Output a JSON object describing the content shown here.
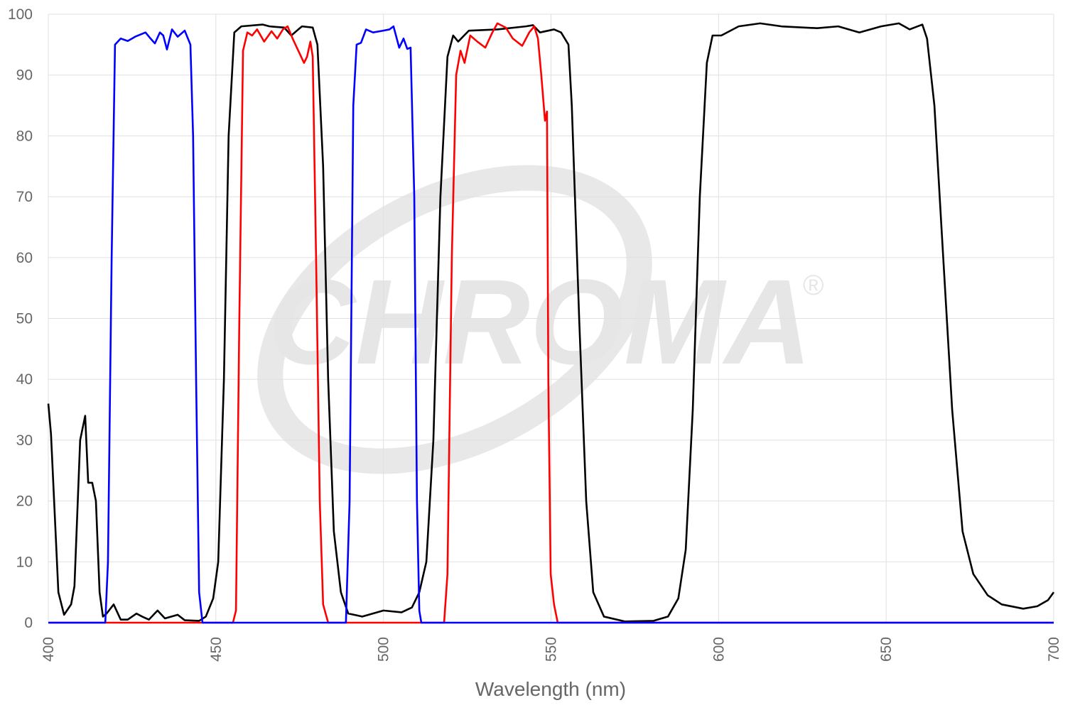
{
  "chart_data": {
    "type": "line",
    "xlabel": "Wavelength (nm)",
    "watermark": "CHROMA",
    "watermark_mark": "®",
    "xlim": [
      400,
      700
    ],
    "xticks": [
      400,
      450,
      500,
      550,
      600,
      650,
      700
    ],
    "ylim": [
      0,
      100
    ],
    "yticks": [
      0,
      10,
      20,
      30,
      40,
      50,
      60,
      70,
      80,
      90,
      100
    ],
    "grid": true,
    "series": [
      {
        "color": "#000000",
        "x": [
          400,
          400.8,
          403,
          404.7,
          406.8,
          407.8,
          409.5,
          411,
          411.9,
          413.1,
          414.2,
          415.3,
          416.3,
          417.4,
          419.5,
          421.6,
          423.7,
          426.3,
          428,
          430,
          432.6,
          434.8,
          438.6,
          440.7,
          445,
          447,
          449.2,
          450.7,
          452.4,
          453.8,
          455.5,
          457.6,
          464,
          466,
          470.4,
          472.5,
          474.6,
          475.7,
          478.9,
          480.3,
          482,
          483.5,
          485.2,
          487.3,
          489.5,
          493.7,
          500,
          505.4,
          508.5,
          510.7,
          512.8,
          514.9,
          517,
          519.1,
          520.8,
          522.3,
          525.5,
          534,
          542.5,
          544.6,
          546.7,
          550.9,
          553,
          555.2,
          556.2,
          558.4,
          560.5,
          562.6,
          565.8,
          572,
          580.6,
          584.9,
          588,
          590.2,
          592.3,
          594.4,
          596.5,
          598.2,
          600.8,
          606,
          612.4,
          618.8,
          629.4,
          635.7,
          642,
          645.3,
          648.5,
          653.8,
          657,
          660.8,
          662.2,
          664.4,
          666.5,
          669.7,
          672.8,
          676,
          680.3,
          684.5,
          690.9,
          695.1,
          698.3,
          700
        ],
        "values": [
          36,
          31,
          5,
          1.3,
          3,
          6,
          30,
          34,
          23,
          23,
          20,
          5,
          1,
          1.5,
          3,
          0.5,
          0.5,
          1.5,
          1,
          0.5,
          2,
          0.7,
          1.3,
          0.4,
          0.3,
          1,
          4,
          10,
          40,
          80,
          97,
          98,
          98.3,
          98,
          97.8,
          96.5,
          97.5,
          98,
          97.8,
          95,
          75,
          40,
          15,
          5,
          1.5,
          1,
          2,
          1.7,
          2.5,
          5,
          10,
          30,
          70,
          93,
          96.5,
          95.5,
          97.3,
          97.5,
          98,
          98.2,
          97,
          97.5,
          97,
          95,
          85,
          50,
          20,
          5,
          1,
          0.2,
          0.3,
          1,
          4,
          12,
          35,
          70,
          92,
          96.5,
          96.5,
          98,
          98.5,
          98,
          97.7,
          98,
          97,
          97.5,
          98,
          98.5,
          97.5,
          98.3,
          96,
          85,
          65,
          35,
          15,
          8,
          4.5,
          3,
          2.3,
          2.7,
          3.7,
          5
        ]
      },
      {
        "color": "#ff0000",
        "x": [
          400,
          455.1,
          456,
          457,
          458.1,
          459.4,
          460.8,
          462.3,
          464.4,
          466.6,
          468.3,
          470,
          471.4,
          472.9,
          474.6,
          476.3,
          477.2,
          478.2,
          478.9,
          479.9,
          481,
          482,
          483.5,
          518.1,
          519.1,
          520.4,
          521.7,
          523,
          524.2,
          525.9,
          528,
          530.4,
          532.5,
          534,
          536.5,
          538.6,
          541.4,
          543.5,
          545,
          546.1,
          547.1,
          548.2,
          548.8,
          549.2,
          549.9,
          550.9,
          552,
          700
        ],
        "values": [
          0,
          0,
          2,
          50,
          94,
          97,
          96.5,
          97.5,
          95.5,
          97.2,
          96,
          97.5,
          98,
          96,
          94,
          92,
          93,
          95.5,
          93,
          60,
          20,
          3,
          0,
          0,
          8,
          60,
          90,
          94,
          92,
          96.5,
          95.5,
          94.5,
          97,
          98.5,
          97.8,
          96,
          94.8,
          97,
          98,
          96,
          90,
          82.5,
          84,
          40,
          8,
          3,
          0,
          0
        ]
      },
      {
        "color": "#0000ff",
        "x": [
          400,
          417,
          417.8,
          418.9,
          419.9,
          421.6,
          423.7,
          425.9,
          429,
          430.5,
          431.8,
          433.3,
          434.3,
          435.4,
          436.9,
          438.6,
          440.7,
          442.4,
          443.2,
          444.1,
          445,
          446,
          488.8,
          489.9,
          491,
          492,
          493.3,
          494.8,
          496.9,
          500,
          501.8,
          503,
          504.7,
          506,
          507.1,
          508.1,
          509.2,
          510,
          510.7,
          511.3,
          700
        ],
        "values": [
          0,
          0,
          10,
          60,
          95,
          96,
          95.6,
          96.3,
          97,
          96,
          95.2,
          97,
          96.5,
          94.2,
          97.5,
          96.3,
          97.3,
          95,
          80,
          40,
          5,
          0,
          0,
          20,
          85,
          95,
          95.3,
          97.5,
          97,
          97.3,
          97.5,
          98,
          94.5,
          96,
          94.3,
          94.5,
          70,
          20,
          2,
          0,
          0
        ]
      }
    ]
  }
}
